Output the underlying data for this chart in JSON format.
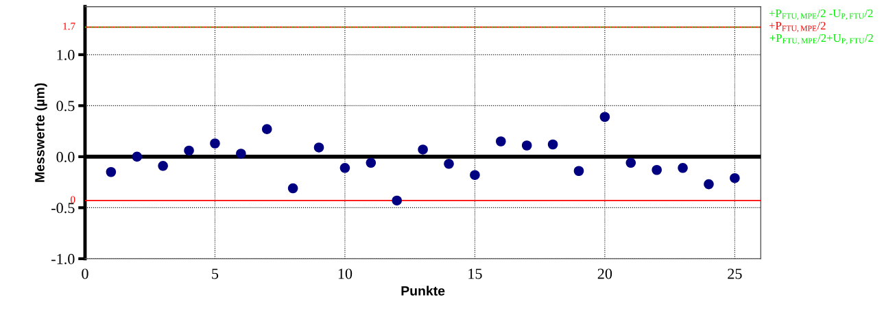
{
  "chart_data": {
    "type": "scatter",
    "xlabel": "Punkte",
    "ylabel": "Messwerte (µm)",
    "x": [
      1,
      2,
      3,
      4,
      5,
      6,
      7,
      8,
      9,
      10,
      11,
      12,
      13,
      14,
      15,
      16,
      17,
      18,
      19,
      20,
      21,
      22,
      23,
      24,
      25
    ],
    "series": [
      {
        "color": "#000080",
        "values": [
          -0.15,
          0.0,
          -0.09,
          0.06,
          0.13,
          0.03,
          0.27,
          -0.31,
          0.09,
          -0.11,
          -0.06,
          -0.43,
          0.07,
          -0.07,
          -0.18,
          0.15,
          0.11,
          0.12,
          -0.14,
          0.39,
          -0.06,
          -0.13,
          -0.11,
          -0.27,
          -0.21
        ]
      }
    ],
    "marker": "circle",
    "xlim": [
      0,
      26
    ],
    "xticks": [
      0,
      5,
      10,
      15,
      20,
      25
    ],
    "ylim": [
      -1.0,
      1.47
    ],
    "yticks": [
      {
        "value": -1.0,
        "label": "-1.0"
      },
      {
        "value": -0.5,
        "label": "-0.5"
      },
      {
        "value": 0.0,
        "label": "0.0"
      },
      {
        "value": 0.5,
        "label": "0.5"
      },
      {
        "value": 1.0,
        "label": "1.0"
      }
    ],
    "grid": true,
    "ref_lines": [
      {
        "axis": "y",
        "value": 1.27,
        "label": "+P$_{FTU,MPE}$/2 -U$_{P,FTU}$/2",
        "color": "#00ee00",
        "line_style": "dotted"
      },
      {
        "axis": "y",
        "value": 1.27,
        "label": "+P$_{FTU,MPE}$/2",
        "color": "#ff0000",
        "line_style": "solid"
      },
      {
        "axis": "y",
        "value": -0.43,
        "color": "#ff0000",
        "line_style": "solid"
      },
      {
        "axis": "y",
        "value": 0.0,
        "color": "#000000",
        "line_style": "solid"
      }
    ],
    "annotations": [
      "1.7",
      "0",
      {
        "text": "+P$_{FTU,MPE}$/2+U$_{P,FTU}$/2",
        "x": 26,
        "y": 1.27
      }
    ]
  }
}
